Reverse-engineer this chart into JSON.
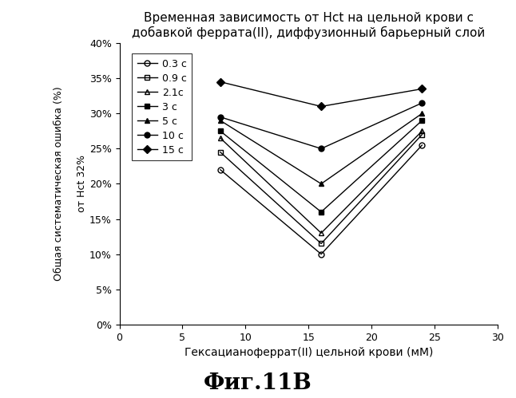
{
  "title": "Временная зависимость от Hct на цельной крови с\nдобавкой феррата(II), диффузионный барьерный слой",
  "xlabel": "Гексацианоферрат(II) цельной крови (мМ)",
  "ylabel1": "Общая систематическая ошибка (%)",
  "ylabel2": "от Hct 32%",
  "x_values": [
    8,
    16,
    24
  ],
  "xlim": [
    0,
    30
  ],
  "ylim": [
    0,
    0.4
  ],
  "xticks": [
    0,
    5,
    10,
    15,
    20,
    25,
    30
  ],
  "yticks": [
    0,
    0.05,
    0.1,
    0.15,
    0.2,
    0.25,
    0.3,
    0.35,
    0.4
  ],
  "series": [
    {
      "label": "0.3 с",
      "marker": "o",
      "color": "black",
      "fillstyle": "none",
      "linewidth": 1,
      "markersize": 5,
      "values": [
        0.22,
        0.1,
        0.255
      ]
    },
    {
      "label": "0.9 с",
      "marker": "s",
      "color": "black",
      "fillstyle": "none",
      "linewidth": 1,
      "markersize": 5,
      "values": [
        0.245,
        0.115,
        0.27
      ]
    },
    {
      "label": "2.1с",
      "marker": "^",
      "color": "black",
      "fillstyle": "none",
      "linewidth": 1,
      "markersize": 5,
      "values": [
        0.265,
        0.13,
        0.275
      ]
    },
    {
      "label": "3 с",
      "marker": "s",
      "color": "black",
      "fillstyle": "full",
      "linewidth": 1,
      "markersize": 5,
      "values": [
        0.275,
        0.16,
        0.29
      ]
    },
    {
      "label": "5 с",
      "marker": "^",
      "color": "black",
      "fillstyle": "full",
      "linewidth": 1,
      "markersize": 5,
      "values": [
        0.29,
        0.2,
        0.3
      ]
    },
    {
      "label": "10 с",
      "marker": "o",
      "color": "black",
      "fillstyle": "full",
      "linewidth": 1,
      "markersize": 5,
      "values": [
        0.295,
        0.25,
        0.315
      ]
    },
    {
      "label": "15 с",
      "marker": "D",
      "color": "black",
      "fillstyle": "full",
      "linewidth": 1,
      "markersize": 5,
      "values": [
        0.345,
        0.31,
        0.335
      ]
    }
  ],
  "fig_width": 6.46,
  "fig_height": 4.99,
  "dpi": 100,
  "fig_label": "Фиг.11В",
  "background_color": "#ffffff"
}
